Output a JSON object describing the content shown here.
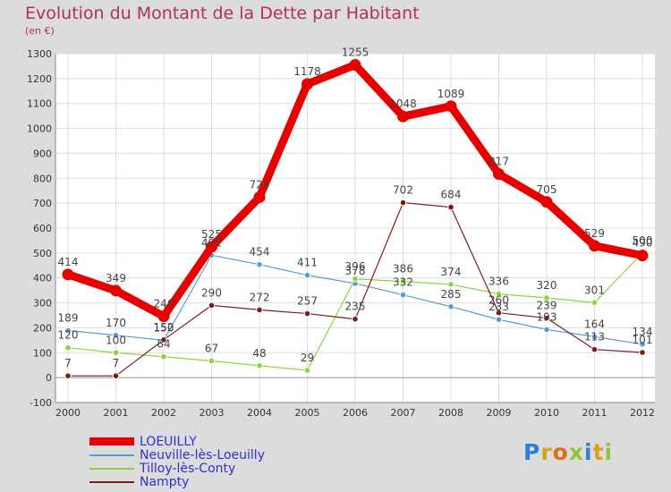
{
  "chart_data": {
    "type": "line",
    "title": "Evolution du Montant de la Dette par Habitant",
    "subtitle": "(en €)",
    "x": [
      "2000",
      "2001",
      "2002",
      "2003",
      "2004",
      "2005",
      "2006",
      "2007",
      "2008",
      "2009",
      "2010",
      "2011",
      "2012"
    ],
    "ylim": [
      -100,
      1300
    ],
    "yticks": [
      -100,
      0,
      100,
      200,
      300,
      400,
      500,
      600,
      700,
      800,
      900,
      1000,
      1100,
      1200,
      1300
    ],
    "grid": true,
    "legend_position": "bottom",
    "series": [
      {
        "name": "LOEUILLY",
        "color": "#e80000",
        "values": [
          414,
          349,
          246,
          525,
          724,
          1178,
          1255,
          1048,
          1089,
          817,
          705,
          529,
          490
        ]
      },
      {
        "name": "Neuville-lès-Loeuilly",
        "color": "#5b9bd5",
        "values": [
          189,
          170,
          150,
          491,
          454,
          411,
          378,
          332,
          285,
          233,
          193,
          164,
          134
        ]
      },
      {
        "name": "Tilloy-lès-Conty",
        "color": "#8cd43a",
        "values": [
          120,
          100,
          84,
          67,
          48,
          29,
          396,
          386,
          374,
          336,
          320,
          301,
          500
        ]
      },
      {
        "name": "Nampty",
        "color": "#7a1c1c",
        "values": [
          7,
          7,
          152,
          290,
          272,
          257,
          235,
          702,
          684,
          260,
          239,
          113,
          101
        ]
      }
    ]
  },
  "logo": {
    "letters": [
      "P",
      "r",
      "o",
      "x",
      "i",
      "t",
      "i"
    ],
    "colors": [
      "#2e7dd6",
      "#d9a21b",
      "#e06c1c",
      "#8cc63f",
      "#2e7dd6",
      "#d9a21b",
      "#8cc63f"
    ]
  }
}
